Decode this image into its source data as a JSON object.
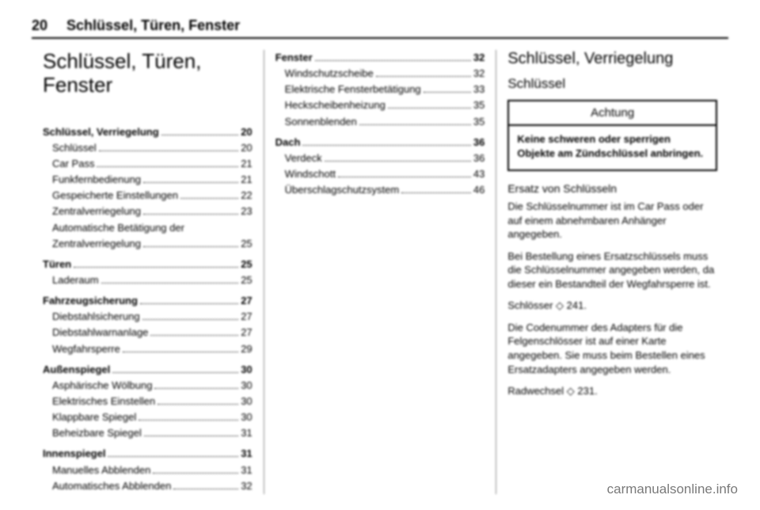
{
  "header": {
    "page_number": "20",
    "running_title": "Schlüssel, Türen, Fenster"
  },
  "chapter_title": "Schlüssel, Türen, Fenster",
  "toc_col1": [
    {
      "label": "Schlüssel, Verriegelung",
      "page": "20",
      "bold": true
    },
    {
      "label": "Schlüssel",
      "page": "20",
      "sub": true
    },
    {
      "label": "Car Pass",
      "page": "21",
      "sub": true
    },
    {
      "label": "Funkfernbedienung",
      "page": "21",
      "sub": true
    },
    {
      "label": "Gespeicherte Einstellungen",
      "page": "22",
      "sub": true
    },
    {
      "label": "Zentralverriegelung",
      "page": "23",
      "sub": true
    },
    {
      "label": "Automatische Betätigung der",
      "label2": "Zentralverriegelung",
      "page": "25",
      "sub": true,
      "multi": true
    },
    {
      "spacer": true
    },
    {
      "label": "Türen",
      "page": "25",
      "bold": true
    },
    {
      "label": "Laderaum",
      "page": "25",
      "sub": true
    },
    {
      "spacer": true
    },
    {
      "label": "Fahrzeugsicherung",
      "page": "27",
      "bold": true
    },
    {
      "label": "Diebstahlsicherung",
      "page": "27",
      "sub": true
    },
    {
      "label": "Diebstahlwarnanlage",
      "page": "27",
      "sub": true
    },
    {
      "label": "Wegfahrsperre",
      "page": "29",
      "sub": true
    },
    {
      "spacer": true
    },
    {
      "label": "Außenspiegel",
      "page": "30",
      "bold": true
    },
    {
      "label": "Asphärische Wölbung",
      "page": "30",
      "sub": true
    },
    {
      "label": "Elektrisches Einstellen",
      "page": "30",
      "sub": true
    },
    {
      "label": "Klappbare Spiegel",
      "page": "30",
      "sub": true
    },
    {
      "label": "Beheizbare Spiegel",
      "page": "31",
      "sub": true
    },
    {
      "spacer": true
    },
    {
      "label": "Innenspiegel",
      "page": "31",
      "bold": true
    },
    {
      "label": "Manuelles Abblenden",
      "page": "31",
      "sub": true
    },
    {
      "label": "Automatisches Abblenden",
      "page": "32",
      "sub": true
    }
  ],
  "toc_col2": [
    {
      "label": "Fenster",
      "page": "32",
      "bold": true
    },
    {
      "label": "Windschutzscheibe",
      "page": "32",
      "sub": true
    },
    {
      "label": "Elektrische Fensterbetätigung",
      "page": "33",
      "sub": true
    },
    {
      "label": "Heckscheibenheizung",
      "page": "35",
      "sub": true
    },
    {
      "label": "Sonnenblenden",
      "page": "35",
      "sub": true
    },
    {
      "spacer": true
    },
    {
      "label": "Dach",
      "page": "36",
      "bold": true
    },
    {
      "label": "Verdeck",
      "page": "36",
      "sub": true
    },
    {
      "label": "Windschott",
      "page": "43",
      "sub": true
    },
    {
      "label": "Überschlagschutzsystem",
      "page": "46",
      "sub": true
    }
  ],
  "col3": {
    "h2": "Schlüssel, Verriegelung",
    "h3": "Schlüssel",
    "notice_title": "Achtung",
    "notice_body": "Keine schweren oder sperrigen Objekte am Zündschlüssel anbringen.",
    "subhead": "Ersatz von Schlüsseln",
    "p1": "Die Schlüsselnummer ist im Car Pass oder auf einem abnehmbaren Anhänger angegeben.",
    "p2": "Bei Bestellung eines Ersatzschlüssels muss die Schlüsselnummer angegeben werden, da dieser ein Bestandteil der Wegfahrsperre ist.",
    "p3": "Schlösser ◇ 241.",
    "p4": "Die Codenummer des Adapters für die Felgenschlösser ist auf einer Karte angegeben. Sie muss beim Bestellen eines Ersatzadapters angegeben werden.",
    "p5": "Radwechsel ◇ 231."
  },
  "watermark": "carmanualsonline.info"
}
